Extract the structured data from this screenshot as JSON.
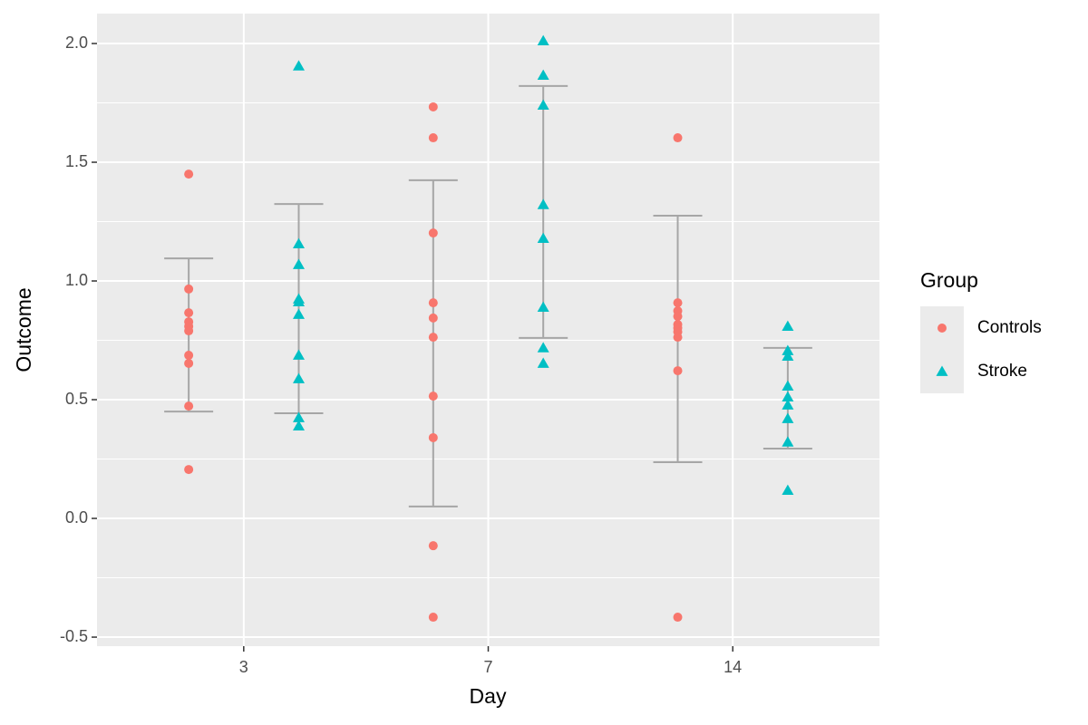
{
  "chart_data": {
    "type": "strip",
    "x_label": "Day",
    "y_label": "Outcome",
    "legend_title": "Group",
    "legend_position": "right",
    "categories": [
      "3",
      "7",
      "14"
    ],
    "ylim": [
      -0.538,
      2.126
    ],
    "yticks": [
      -0.5,
      {
        "value": 0,
        "label": "0.0"
      },
      0.5,
      {
        "value": 1,
        "label": "1.0"
      },
      1.5,
      {
        "value": 2,
        "label": "2.0"
      }
    ],
    "grid": true,
    "minor_grid": true,
    "error_bar_color": "#a6a6a6",
    "series": [
      {
        "name": "Controls",
        "color": "#f8766d",
        "marker": "circle",
        "values": [
          [
            1.45,
            0.966,
            0.866,
            0.828,
            0.809,
            0.79,
            0.687,
            0.653,
            0.473,
            0.206
          ],
          [
            1.733,
            1.603,
            1.202,
            0.908,
            0.844,
            0.763,
            0.515,
            0.34,
            -0.115,
            -0.416
          ],
          [
            1.603,
            0.908,
            0.874,
            0.851,
            0.817,
            0.802,
            0.786,
            0.763,
            0.622,
            -0.416
          ]
        ],
        "upper": [
          1.095,
          1.424,
          1.275
        ],
        "lower": [
          0.45,
          0.05,
          0.237
        ]
      },
      {
        "name": "Stroke",
        "color": "#00bfc4",
        "marker": "triangle",
        "values": [
          [
            1.905,
            1.156,
            1.069,
            0.924,
            0.912,
            0.859,
            0.687,
            0.588,
            0.424,
            0.389
          ],
          [
            2.011,
            1.866,
            1.74,
            1.321,
            1.179,
            0.889,
            0.718,
            0.653
          ],
          [
            0.809,
            0.706,
            0.683,
            0.557,
            0.511,
            0.477,
            0.42,
            0.321,
            0.118
          ]
        ],
        "upper": [
          1.324,
          1.821,
          0.718
        ],
        "lower": [
          0.443,
          0.76,
          0.294
        ]
      }
    ]
  }
}
